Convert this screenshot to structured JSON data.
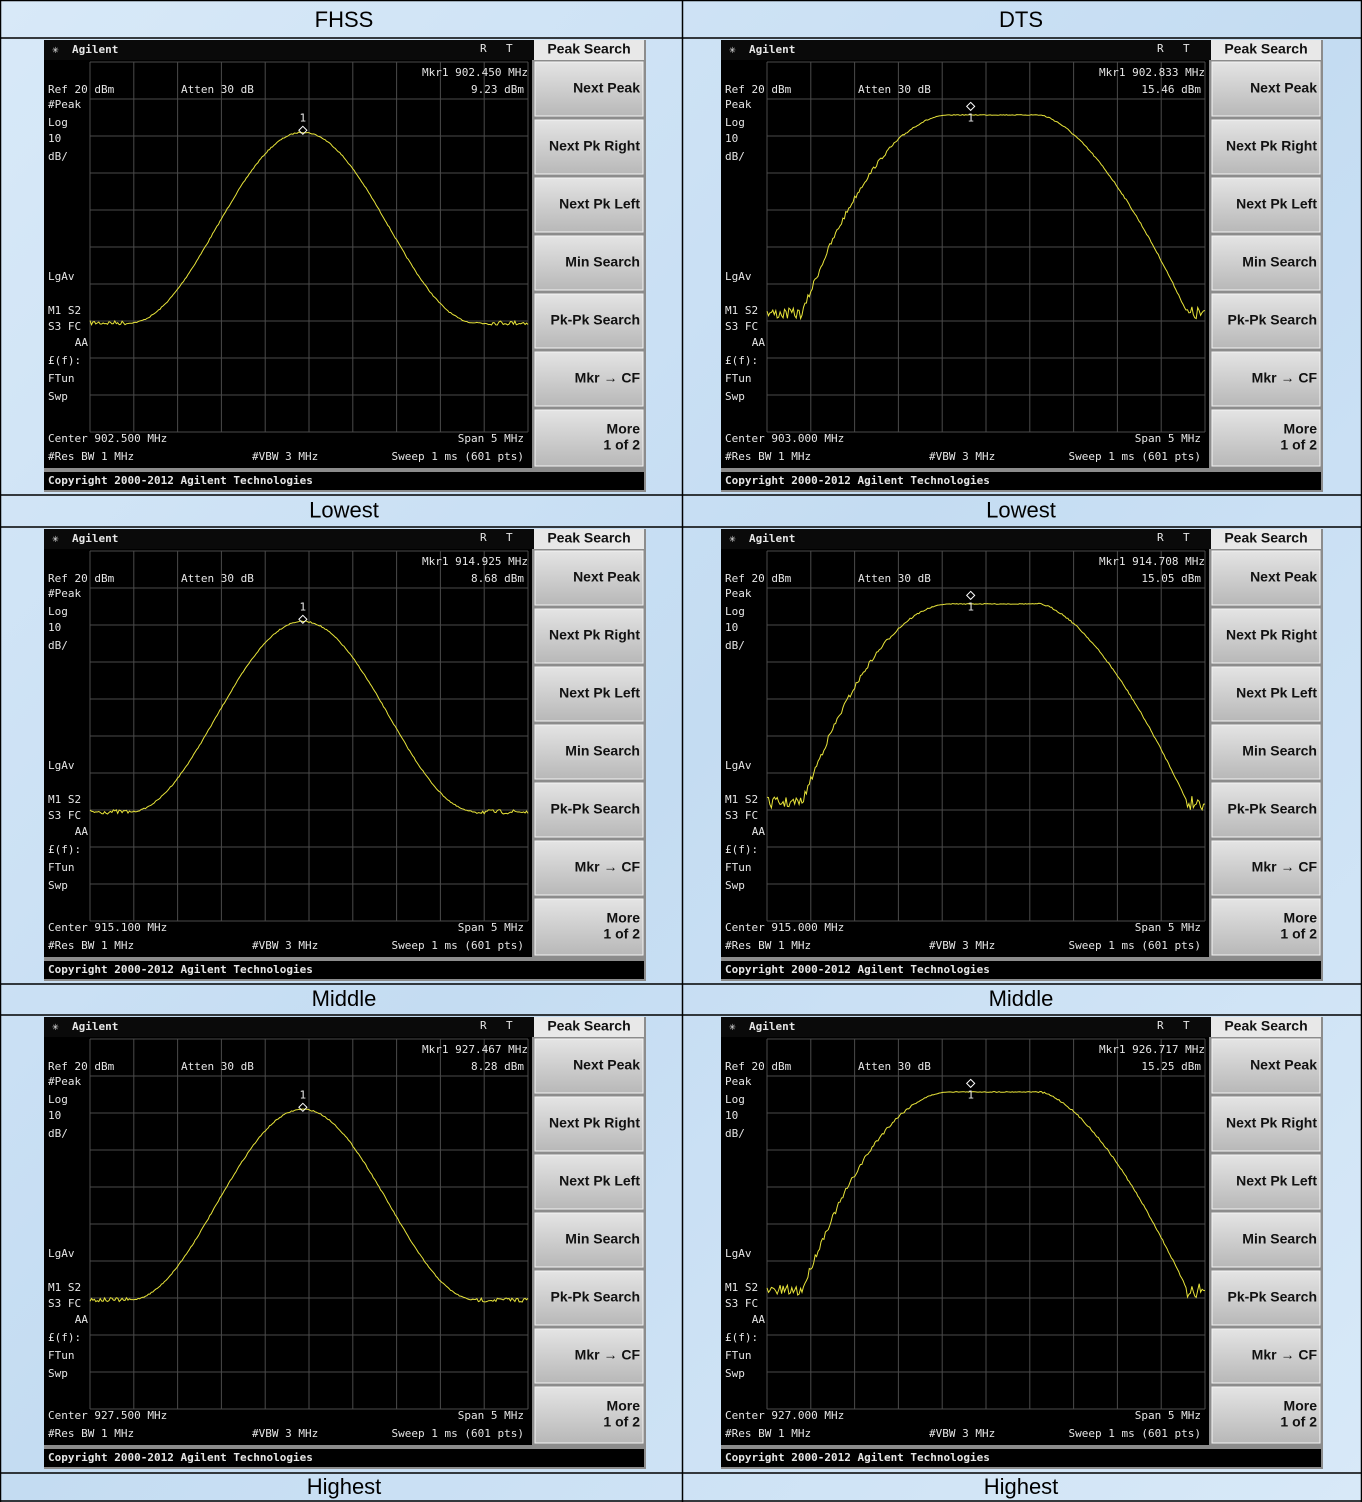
{
  "table": {
    "headers": [
      "FHSS",
      "DTS"
    ],
    "rows": [
      {
        "screens": [
          {
            "marker": "Mkr1 902.450 MHz",
            "marker_level": "9.23 dBm",
            "detector": "#Peak",
            "center": "Center 902.500 MHz"
          },
          {
            "marker": "Mkr1 902.833 MHz",
            "marker_level": "15.46 dBm",
            "detector": "Peak",
            "center": "Center 903.000 MHz"
          }
        ],
        "captions": [
          "Lowest",
          "Lowest"
        ]
      },
      {
        "screens": [
          {
            "marker": "Mkr1 914.925 MHz",
            "marker_level": "8.68 dBm",
            "detector": "#Peak",
            "center": "Center 915.100 MHz"
          },
          {
            "marker": "Mkr1 914.708 MHz",
            "marker_level": "15.05 dBm",
            "detector": "Peak",
            "center": "Center 915.000 MHz"
          }
        ],
        "captions": [
          "Middle",
          "Middle"
        ]
      },
      {
        "screens": [
          {
            "marker": "Mkr1 927.467 MHz",
            "marker_level": "8.28 dBm",
            "detector": "#Peak",
            "center": "Center 927.500 MHz"
          },
          {
            "marker": "Mkr1 926.717 MHz",
            "marker_level": "15.25 dBm",
            "detector": "Peak",
            "center": "Center 927.000 MHz"
          }
        ],
        "captions": [
          "Highest",
          "Highest"
        ]
      }
    ]
  },
  "screen": {
    "brand": "Agilent",
    "r": "R",
    "t": "T",
    "menu_title": "Peak Search",
    "softkeys": [
      "Next Peak",
      "Next Pk Right",
      "Next Pk Left",
      "Min Search",
      "Pk-Pk Search",
      "Mkr → CF"
    ],
    "more": "More",
    "more_page": "1 of 2",
    "ref": "Ref 20 dBm",
    "atten": "Atten 30 dB",
    "left_labels": [
      "Log",
      "10",
      "dB/",
      "LgAv",
      "M1 S2",
      "S3 FC",
      "AA",
      "£(f):",
      "FTun",
      "Swp"
    ],
    "marker_number": "1",
    "span": "Span 5 MHz",
    "rbw": "#Res BW 1 MHz",
    "vbw": "#VBW 3 MHz",
    "sweep": "Sweep 1 ms (601 pts)",
    "copyright": "Copyright 2000-2012 Agilent Technologies"
  }
}
